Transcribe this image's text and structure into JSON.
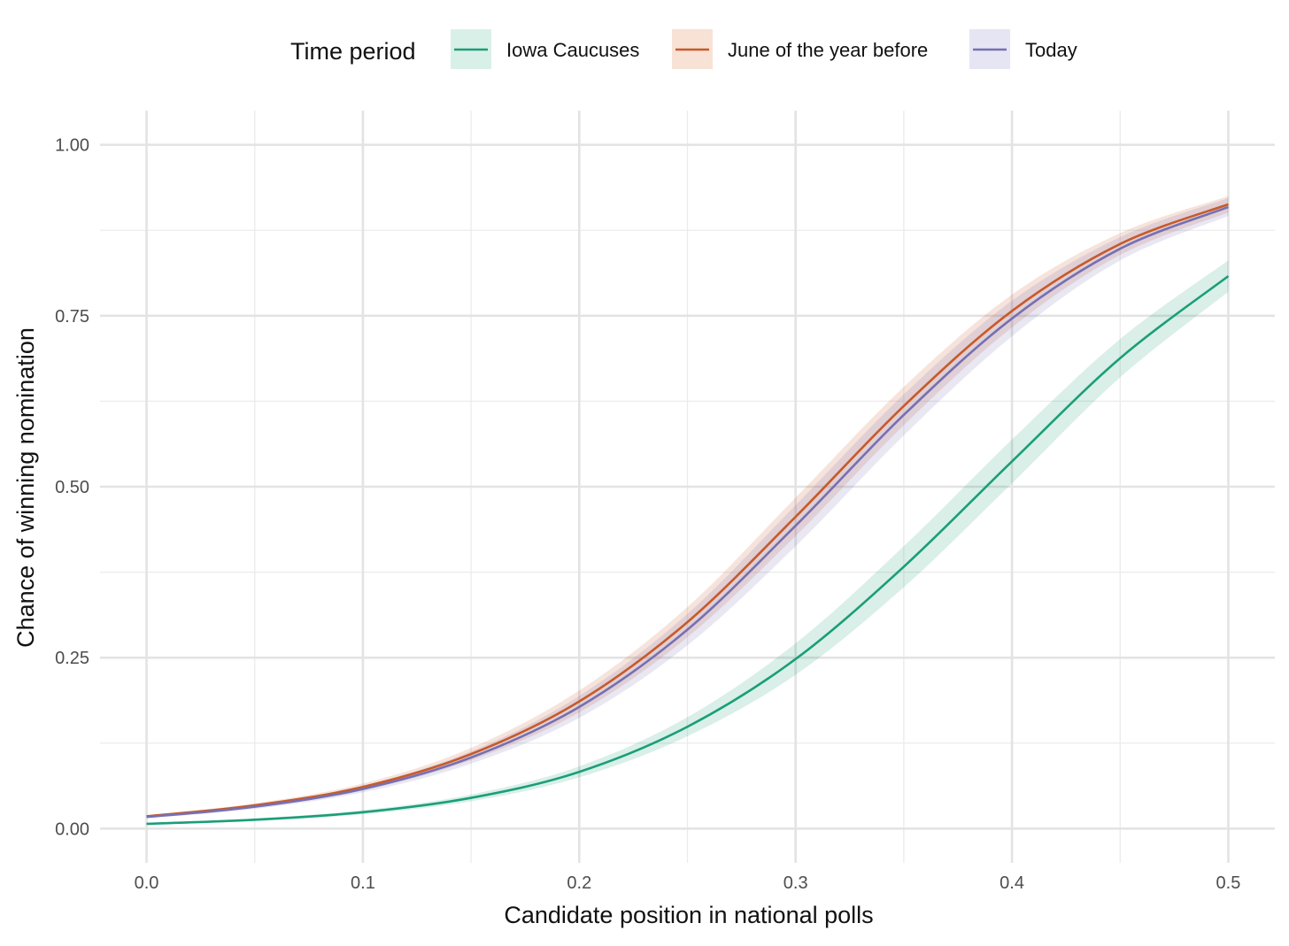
{
  "chart_data": {
    "type": "line",
    "xlabel": "Candidate position in national polls",
    "ylabel": "Chance of winning nomination",
    "xlim": [
      -0.0215,
      0.5215
    ],
    "ylim": [
      -0.05,
      1.05
    ],
    "x_ticks": [
      0.0,
      0.1,
      0.2,
      0.3,
      0.4,
      0.5
    ],
    "x_tick_labels": [
      "0.0",
      "0.1",
      "0.2",
      "0.3",
      "0.4",
      "0.5"
    ],
    "y_ticks": [
      0.0,
      0.25,
      0.5,
      0.75,
      1.0
    ],
    "y_tick_labels": [
      "0.00",
      "0.25",
      "0.50",
      "0.75",
      "1.00"
    ],
    "grid": true,
    "legend": {
      "title": "Time period",
      "placement": "top",
      "entries": [
        "Iowa Caucuses",
        "June of the year before",
        "Today"
      ]
    },
    "x": [
      0.0,
      0.05,
      0.1,
      0.15,
      0.2,
      0.25,
      0.3,
      0.35,
      0.4,
      0.45,
      0.5
    ],
    "series": [
      {
        "name": "Iowa Caucuses",
        "color": "#1b9e77",
        "values": [
          0.007,
          0.013,
          0.024,
          0.045,
          0.083,
          0.149,
          0.248,
          0.383,
          0.537,
          0.688,
          0.808
        ],
        "lower": [
          0.006,
          0.011,
          0.021,
          0.04,
          0.075,
          0.135,
          0.225,
          0.353,
          0.505,
          0.66,
          0.785
        ],
        "upper": [
          0.008,
          0.015,
          0.027,
          0.05,
          0.091,
          0.163,
          0.271,
          0.413,
          0.569,
          0.716,
          0.831
        ]
      },
      {
        "name": "June of the year before",
        "color": "#c75a2a",
        "values": [
          0.018,
          0.034,
          0.061,
          0.109,
          0.186,
          0.302,
          0.456,
          0.618,
          0.757,
          0.855,
          0.913
        ],
        "lower": [
          0.016,
          0.031,
          0.056,
          0.1,
          0.17,
          0.28,
          0.428,
          0.59,
          0.733,
          0.839,
          0.901
        ],
        "upper": [
          0.02,
          0.037,
          0.066,
          0.118,
          0.202,
          0.324,
          0.484,
          0.646,
          0.781,
          0.871,
          0.925
        ]
      },
      {
        "name": "Today",
        "color": "#7570b3",
        "values": [
          0.017,
          0.032,
          0.058,
          0.104,
          0.178,
          0.291,
          0.443,
          0.605,
          0.746,
          0.848,
          0.909
        ],
        "lower": [
          0.015,
          0.029,
          0.053,
          0.095,
          0.162,
          0.268,
          0.413,
          0.575,
          0.72,
          0.831,
          0.896
        ],
        "upper": [
          0.019,
          0.035,
          0.063,
          0.113,
          0.194,
          0.314,
          0.473,
          0.635,
          0.772,
          0.865,
          0.922
        ]
      }
    ]
  }
}
